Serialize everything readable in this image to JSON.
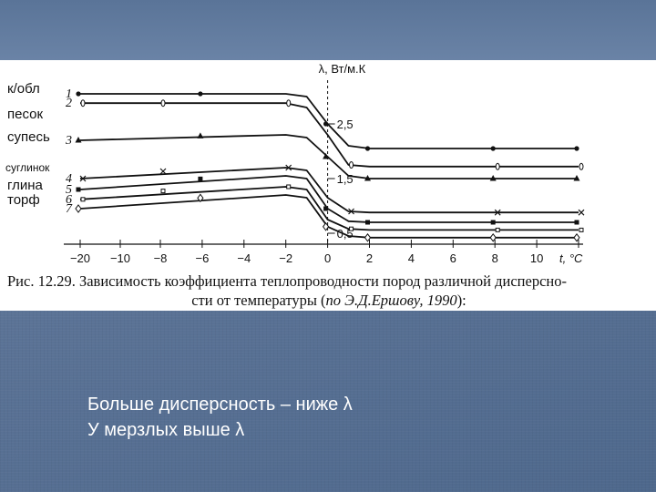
{
  "chart_data": {
    "type": "line",
    "xlabel": "t, °C",
    "ylabel": "λ, Вт/м.К",
    "x_ticks": [
      "−20",
      "−10",
      "−8",
      "−6",
      "−4",
      "−2",
      "0",
      "2",
      "4",
      "6",
      "8",
      "10"
    ],
    "x_tick_values": [
      -20,
      -10,
      -8,
      -6,
      -4,
      -2,
      0,
      2,
      4,
      6,
      8,
      10,
      12
    ],
    "xlim": [
      -20,
      12
    ],
    "ylim": [
      0.3,
      3.4
    ],
    "y_marks": [
      {
        "value": 2.5,
        "label": "2,5"
      },
      {
        "value": 1.5,
        "label": "1,5"
      },
      {
        "value": 0.5,
        "label": "0,5"
      }
    ],
    "series": [
      {
        "id": "1",
        "name": "к/обл",
        "marker": "dot",
        "points": [
          [
            -20,
            3.05
          ],
          [
            -2,
            3.05
          ],
          [
            -1,
            3.0
          ],
          [
            0,
            2.5
          ],
          [
            1,
            2.1
          ],
          [
            2,
            2.05
          ],
          [
            12,
            2.05
          ]
        ]
      },
      {
        "id": "2",
        "name": "песок",
        "marker": "ring",
        "points": [
          [
            -20,
            2.88
          ],
          [
            -2,
            2.88
          ],
          [
            -1,
            2.8
          ],
          [
            0,
            2.3
          ],
          [
            1,
            1.75
          ],
          [
            2,
            1.72
          ],
          [
            12,
            1.72
          ]
        ]
      },
      {
        "id": "3",
        "name": "супесь",
        "marker": "triangle",
        "points": [
          [
            -20,
            2.2
          ],
          [
            -2,
            2.3
          ],
          [
            -1,
            2.25
          ],
          [
            0,
            1.9
          ],
          [
            1,
            1.55
          ],
          [
            2,
            1.5
          ],
          [
            12,
            1.5
          ]
        ]
      },
      {
        "id": "4",
        "name": "суглинок",
        "marker": "cross",
        "points": [
          [
            -20,
            1.5
          ],
          [
            -2,
            1.7
          ],
          [
            -1,
            1.65
          ],
          [
            0,
            1.15
          ],
          [
            1,
            0.9
          ],
          [
            2,
            0.88
          ],
          [
            12,
            0.88
          ]
        ]
      },
      {
        "id": "5",
        "name": "",
        "marker": "square",
        "points": [
          [
            -20,
            1.3
          ],
          [
            -2,
            1.55
          ],
          [
            -1,
            1.5
          ],
          [
            0,
            0.95
          ],
          [
            1,
            0.72
          ],
          [
            2,
            0.7
          ],
          [
            12,
            0.7
          ]
        ]
      },
      {
        "id": "6",
        "name": "глина",
        "marker": "square-dot",
        "points": [
          [
            -20,
            1.12
          ],
          [
            -2,
            1.35
          ],
          [
            -1,
            1.3
          ],
          [
            0,
            0.75
          ],
          [
            1,
            0.58
          ],
          [
            2,
            0.56
          ],
          [
            12,
            0.56
          ]
        ]
      },
      {
        "id": "7",
        "name": "торф",
        "marker": "diamond",
        "points": [
          [
            -20,
            0.95
          ],
          [
            -2,
            1.2
          ],
          [
            -1,
            1.15
          ],
          [
            0,
            0.62
          ],
          [
            1,
            0.45
          ],
          [
            2,
            0.42
          ],
          [
            12,
            0.42
          ]
        ]
      }
    ],
    "title": "",
    "caption_line1": "Рис. 12.29. Зависимость коэффициента теплопроводности пород различной дисперсно-",
    "caption_line2_a": "сти от температуры (",
    "caption_line2_b": "по Э.Д.Ершову, 1990",
    "caption_line2_c": "):"
  },
  "soil_labels": [
    {
      "text": "к/обл",
      "num": "1"
    },
    {
      "text": "песок",
      "num": "2"
    },
    {
      "text": "супесь",
      "num": "3"
    },
    {
      "text": "суглинок",
      "num": "4"
    },
    {
      "text": "",
      "num": "5"
    },
    {
      "text": "глина",
      "num": "6"
    },
    {
      "text": "торф",
      "num": "7"
    }
  ],
  "notes": {
    "line1": "Больше дисперсность – ниже λ",
    "line2": "У мерзлых выше λ"
  }
}
